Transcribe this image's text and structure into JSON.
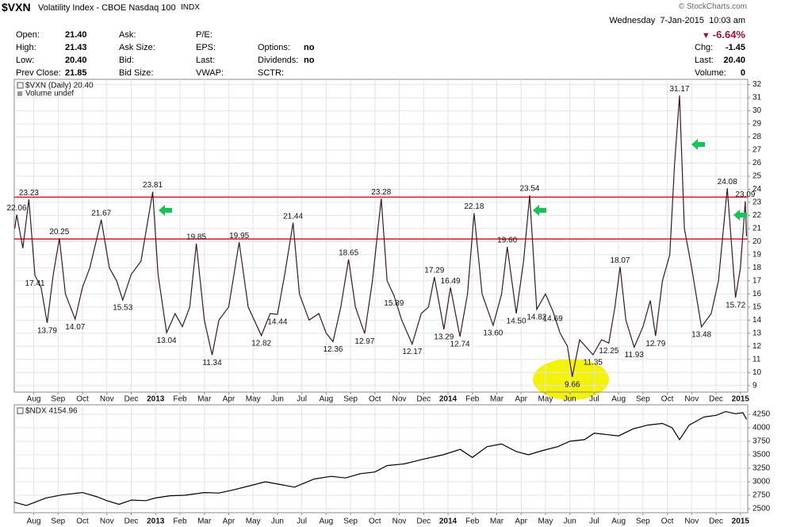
{
  "header": {
    "symbol": "$VXN",
    "name": "Volatility Index - CBOE Nasdaq 100",
    "exchange": "INDX",
    "copyright": "© StockCharts.com",
    "datetime": "Wednesday  7-Jan-2015  10:03 am",
    "change_pct": "-6.64%",
    "col1": [
      [
        "Open:",
        "21.40"
      ],
      [
        "High:",
        "21.43"
      ],
      [
        "Low:",
        "20.40"
      ],
      [
        "Prev Close:",
        "21.85"
      ]
    ],
    "col2": [
      "Ask:",
      "Ask Size:",
      "Bid:",
      "Bid Size:"
    ],
    "col3": [
      "P/E:",
      "EPS:",
      "Last:",
      "VWAP:"
    ],
    "col4": [
      [
        "Options:",
        "no"
      ],
      [
        "Dividends:",
        "no"
      ],
      [
        "SCTR:"
      ]
    ],
    "right": [
      [
        "Chg:",
        "-1.45"
      ],
      [
        "Last:",
        "20.40"
      ],
      [
        "Volume:",
        "0"
      ]
    ]
  },
  "chart_data": [
    {
      "type": "line",
      "legend": "$VXN (Daily) 20.40",
      "volume_note": "Volume undef",
      "color": "#3a1a22",
      "grid": true,
      "x": [
        -0.78,
        -0.7,
        -0.45,
        -0.2,
        0.05,
        0.3,
        0.55,
        0.8,
        1.05,
        1.3,
        1.7,
        2.0,
        2.3,
        2.77,
        3.1,
        3.4,
        3.65,
        4.0,
        4.4,
        4.88,
        5.1,
        5.45,
        5.8,
        6.1,
        6.4,
        6.67,
        7.0,
        7.32,
        7.6,
        8.0,
        8.43,
        8.8,
        9.34,
        9.7,
        10.0,
        10.3,
        10.64,
        10.9,
        11.3,
        11.7,
        12.0,
        12.28,
        12.6,
        12.92,
        13.2,
        13.58,
        13.9,
        14.26,
        14.5,
        14.78,
        15.1,
        15.53,
        15.9,
        16.2,
        16.44,
        16.83,
        17.1,
        17.49,
        17.8,
        18.07,
        18.4,
        18.85,
        19.2,
        19.43,
        19.8,
        20.1,
        20.35,
        20.64,
        21.0,
        21.3,
        21.6,
        21.9,
        22.1,
        22.4,
        22.95,
        23.3,
        23.6,
        23.85,
        24.06,
        24.3,
        24.64,
        25.0,
        25.3,
        25.52,
        25.8,
        26.1,
        26.3,
        26.5,
        26.7,
        27.0,
        27.4,
        27.8,
        28.1,
        28.46,
        28.8,
        29.0,
        29.2,
        29.25
      ],
      "values": [
        21.0,
        22.06,
        19.5,
        23.23,
        17.41,
        16.5,
        13.79,
        17.5,
        20.25,
        16.0,
        14.07,
        16.5,
        18.0,
        21.67,
        18.0,
        17.0,
        15.53,
        17.5,
        18.5,
        23.81,
        17.5,
        13.04,
        14.5,
        13.5,
        15.0,
        19.85,
        14.0,
        11.34,
        14.0,
        15.0,
        19.95,
        15.0,
        12.82,
        14.5,
        14.44,
        17.5,
        21.44,
        16.0,
        14.0,
        14.5,
        13.0,
        12.36,
        15.0,
        18.65,
        15.0,
        12.97,
        17.0,
        23.28,
        17.0,
        15.89,
        14.0,
        12.17,
        14.5,
        15.0,
        17.29,
        13.29,
        16.49,
        12.74,
        16.0,
        22.18,
        16.0,
        13.6,
        16.0,
        19.6,
        14.5,
        18.5,
        23.54,
        14.82,
        16.0,
        14.69,
        13.0,
        12.0,
        9.66,
        12.5,
        11.35,
        12.5,
        12.25,
        15.0,
        18.07,
        14.0,
        11.93,
        13.5,
        15.5,
        12.79,
        17.0,
        19.0,
        26.0,
        31.17,
        21.0,
        18.0,
        13.48,
        14.5,
        17.0,
        24.08,
        15.72,
        18.0,
        23.09,
        20.4
      ],
      "value_labels": [
        null,
        "22.06",
        null,
        "23.23",
        "17.41",
        null,
        "13.79",
        null,
        "20.25",
        null,
        "14.07",
        null,
        null,
        "21.67",
        null,
        null,
        "15.53",
        null,
        null,
        "23.81",
        null,
        "13.04",
        null,
        null,
        null,
        "19.85",
        null,
        "11.34",
        null,
        null,
        "19.95",
        null,
        "12.82",
        null,
        "14.44",
        null,
        "21.44",
        null,
        null,
        null,
        null,
        "12.36",
        null,
        "18.65",
        null,
        "12.97",
        null,
        "23.28",
        null,
        "15.89",
        null,
        "12.17",
        null,
        null,
        "17.29",
        "13.29",
        "16.49",
        "12.74",
        null,
        "22.18",
        null,
        "13.60",
        null,
        "19.60",
        "14.50",
        null,
        "23.54",
        "14.82",
        null,
        "14.69",
        null,
        null,
        "9.66",
        null,
        "11.35",
        null,
        "12.25",
        null,
        "18.07",
        null,
        "11.93",
        null,
        null,
        "12.79",
        null,
        null,
        null,
        "31.17",
        null,
        null,
        "13.48",
        null,
        null,
        "24.08",
        "15.72",
        null,
        "23.09",
        null
      ],
      "hlines": [
        {
          "value": 23.4,
          "color": "#e0141e"
        },
        {
          "value": 20.2,
          "color": "#e0141e"
        }
      ],
      "xlim": [
        -0.8,
        29.3
      ],
      "ylim": [
        8.5,
        32.4
      ],
      "yticks": [
        9,
        10,
        11,
        12,
        13,
        14,
        15,
        16,
        17,
        18,
        19,
        20,
        21,
        22,
        23,
        24,
        25,
        26,
        27,
        28,
        29,
        30,
        31,
        32
      ],
      "xticks": [
        {
          "value": 0,
          "label": "Aug"
        },
        {
          "value": 1,
          "label": "Sep"
        },
        {
          "value": 2,
          "label": "Oct"
        },
        {
          "value": 3,
          "label": "Nov"
        },
        {
          "value": 4,
          "label": "Dec"
        },
        {
          "value": 5,
          "label": "2013"
        },
        {
          "value": 6,
          "label": "Feb"
        },
        {
          "value": 7,
          "label": "Mar"
        },
        {
          "value": 8,
          "label": "Apr"
        },
        {
          "value": 9,
          "label": "May"
        },
        {
          "value": 10,
          "label": "Jun"
        },
        {
          "value": 11,
          "label": "Jul"
        },
        {
          "value": 12,
          "label": "Aug"
        },
        {
          "value": 13,
          "label": "Sep"
        },
        {
          "value": 14,
          "label": "Oct"
        },
        {
          "value": 15,
          "label": "Nov"
        },
        {
          "value": 16,
          "label": "Dec"
        },
        {
          "value": 17,
          "label": "2014"
        },
        {
          "value": 18,
          "label": "Feb"
        },
        {
          "value": 19,
          "label": "Mar"
        },
        {
          "value": 20,
          "label": "Apr"
        },
        {
          "value": 21,
          "label": "May"
        },
        {
          "value": 22,
          "label": "Jun"
        },
        {
          "value": 23,
          "label": "Jul"
        },
        {
          "value": 24,
          "label": "Aug"
        },
        {
          "value": 25,
          "label": "Sep"
        },
        {
          "value": 26,
          "label": "Oct"
        },
        {
          "value": 27,
          "label": "Nov"
        },
        {
          "value": 28,
          "label": "Dec"
        },
        {
          "value": 29,
          "label": "2015"
        }
      ]
    },
    {
      "type": "line",
      "legend": "$NDX 4154.96",
      "color": "#000000",
      "grid": true,
      "x": [
        -0.8,
        -0.3,
        0.5,
        1.2,
        2.0,
        2.6,
        3.0,
        3.5,
        4.0,
        4.6,
        5.0,
        5.6,
        6.2,
        7.0,
        7.6,
        8.2,
        9.0,
        9.5,
        10.1,
        10.7,
        11.5,
        12.2,
        12.8,
        13.4,
        14.0,
        14.5,
        15.2,
        16.0,
        16.8,
        17.5,
        18.0,
        18.6,
        19.2,
        19.8,
        20.3,
        20.9,
        21.5,
        22.0,
        22.6,
        23.0,
        23.6,
        24.0,
        24.6,
        25.2,
        25.8,
        26.2,
        26.5,
        26.9,
        27.5,
        28.0,
        28.4,
        28.8,
        29.1,
        29.25
      ],
      "values": [
        2620,
        2560,
        2700,
        2760,
        2800,
        2720,
        2650,
        2580,
        2660,
        2650,
        2700,
        2740,
        2750,
        2800,
        2790,
        2850,
        2940,
        3000,
        2950,
        2900,
        3050,
        3100,
        3070,
        3150,
        3180,
        3300,
        3330,
        3420,
        3500,
        3600,
        3450,
        3650,
        3700,
        3560,
        3500,
        3580,
        3650,
        3750,
        3780,
        3900,
        3870,
        3850,
        3980,
        4050,
        4080,
        4000,
        3780,
        4050,
        4200,
        4230,
        4300,
        4260,
        4280,
        4154.96
      ],
      "xlim": [
        -0.8,
        29.3
      ],
      "ylim": [
        2426,
        4426
      ],
      "yticks": [
        2500,
        2750,
        3000,
        3250,
        3500,
        3750,
        4000,
        4250
      ],
      "xticks": [
        {
          "value": 0,
          "label": "Aug"
        },
        {
          "value": 1,
          "label": "Sep"
        },
        {
          "value": 2,
          "label": "Oct"
        },
        {
          "value": 3,
          "label": "Nov"
        },
        {
          "value": 4,
          "label": "Dec"
        },
        {
          "value": 5,
          "label": "2013"
        },
        {
          "value": 6,
          "label": "Feb"
        },
        {
          "value": 7,
          "label": "Mar"
        },
        {
          "value": 8,
          "label": "Apr"
        },
        {
          "value": 9,
          "label": "May"
        },
        {
          "value": 10,
          "label": "Jun"
        },
        {
          "value": 11,
          "label": "Jul"
        },
        {
          "value": 12,
          "label": "Aug"
        },
        {
          "value": 13,
          "label": "Sep"
        },
        {
          "value": 14,
          "label": "Oct"
        },
        {
          "value": 15,
          "label": "Nov"
        },
        {
          "value": 16,
          "label": "Dec"
        },
        {
          "value": 17,
          "label": "2014"
        },
        {
          "value": 18,
          "label": "Feb"
        },
        {
          "value": 19,
          "label": "Mar"
        },
        {
          "value": 20,
          "label": "Apr"
        },
        {
          "value": 21,
          "label": "May"
        },
        {
          "value": 22,
          "label": "Jun"
        },
        {
          "value": 23,
          "label": "Jul"
        },
        {
          "value": 24,
          "label": "Aug"
        },
        {
          "value": 25,
          "label": "Sep"
        },
        {
          "value": 26,
          "label": "Oct"
        },
        {
          "value": 27,
          "label": "Nov"
        },
        {
          "value": 28,
          "label": "Dec"
        },
        {
          "value": 29,
          "label": "2015"
        }
      ]
    }
  ]
}
